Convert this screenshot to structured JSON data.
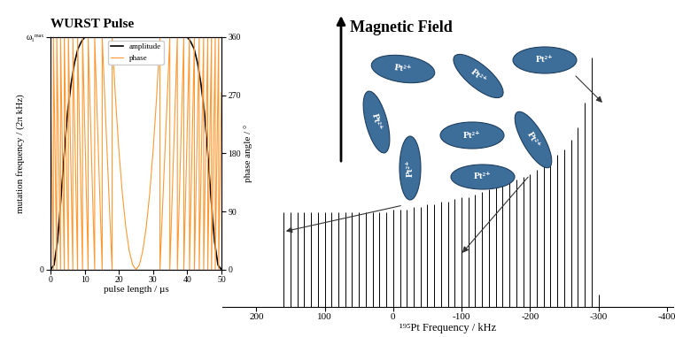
{
  "chart_data": [
    {
      "type": "line",
      "title": "WURST Pulse",
      "xlabel": "pulse length / µs",
      "ylabel": "mutation frequency / (2π kHz)",
      "y2label": "phase angle / °",
      "xlim": [
        0,
        50
      ],
      "xticks": [
        0,
        10,
        20,
        30,
        40,
        50
      ],
      "ylim": [
        0,
        1
      ],
      "yticks": [
        0,
        {
          "value": 1,
          "label": "ω₁ᵐᵃˣ"
        }
      ],
      "y2lim": [
        0,
        360
      ],
      "y2ticks": [
        0,
        90,
        180,
        270,
        360
      ],
      "legend": "upper center",
      "series": [
        {
          "name": "amplitude",
          "color": "#000000",
          "x": [
            0,
            1,
            2,
            3,
            4,
            5,
            6,
            7,
            8,
            9,
            10,
            40,
            41,
            42,
            43,
            44,
            45,
            46,
            47,
            48,
            49,
            50
          ],
          "values": [
            0,
            0.02,
            0.12,
            0.3,
            0.5,
            0.68,
            0.8,
            0.89,
            0.95,
            0.98,
            1,
            1,
            0.98,
            0.95,
            0.89,
            0.8,
            0.68,
            0.5,
            0.3,
            0.12,
            0.02,
            0
          ]
        },
        {
          "name": "phase",
          "color": "#ff9933",
          "axis": "y2",
          "x": [
            0,
            0.8,
            0.8,
            1.8,
            1.8,
            2.9,
            2.9,
            4,
            4,
            5.2,
            5.2,
            6.5,
            6.5,
            7.9,
            7.9,
            9.35,
            9.35,
            11,
            11,
            12.9,
            12.9,
            15.1,
            15.1,
            18,
            18,
            19,
            20,
            21,
            22,
            23,
            24,
            25,
            26,
            27,
            28,
            29,
            30,
            31,
            32,
            32,
            34.9,
            34.9,
            37.1,
            37.1,
            39,
            39,
            40.65,
            40.65,
            42.1,
            42.1,
            43.5,
            43.5,
            44.8,
            44.8,
            46,
            46,
            47.1,
            47.1,
            48.2,
            48.2,
            49.2,
            49.2,
            50
          ],
          "values": [
            274,
            0,
            360,
            0,
            360,
            0,
            360,
            0,
            360,
            0,
            360,
            0,
            360,
            0,
            360,
            0,
            360,
            0,
            360,
            0,
            360,
            0,
            360,
            0,
            360,
            264.6,
            183.8,
            117.6,
            66.2,
            29.4,
            7.4,
            0,
            7.4,
            29.4,
            66.2,
            117.6,
            183.8,
            264.6,
            360,
            0,
            360,
            0,
            360,
            0,
            360,
            0,
            360,
            0,
            360,
            0,
            360,
            0,
            360,
            0,
            360,
            0,
            360,
            0,
            360,
            0,
            360,
            0,
            274
          ]
        }
      ]
    },
    {
      "type": "stem",
      "xlabel": "¹⁹⁵Pt Frequency / kHz",
      "xlim": [
        250,
        -410
      ],
      "xticks": [
        200,
        100,
        0,
        -100,
        -200,
        -300,
        -400
      ],
      "ylim": [
        0,
        1
      ],
      "tick_labels": "x",
      "color": "#000000",
      "x": [
        160,
        150,
        140,
        130,
        120,
        110,
        100,
        90,
        80,
        70,
        60,
        50,
        40,
        30,
        20,
        10,
        0,
        -10,
        -20,
        -30,
        -40,
        -50,
        -60,
        -70,
        -80,
        -90,
        -100,
        -110,
        -120,
        -130,
        -140,
        -150,
        -160,
        -170,
        -180,
        -190,
        -200,
        -210,
        -220,
        -230,
        -240,
        -250,
        -260,
        -270,
        -280,
        -290,
        -300
      ],
      "values": [
        0.38,
        0.38,
        0.38,
        0.38,
        0.38,
        0.38,
        0.38,
        0.38,
        0.38,
        0.38,
        0.38,
        0.38,
        0.38,
        0.38,
        0.38,
        0.38,
        0.39,
        0.39,
        0.39,
        0.4,
        0.4,
        0.41,
        0.41,
        0.42,
        0.42,
        0.43,
        0.44,
        0.44,
        0.45,
        0.46,
        0.47,
        0.48,
        0.49,
        0.5,
        0.51,
        0.52,
        0.53,
        0.55,
        0.57,
        0.59,
        0.61,
        0.63,
        0.67,
        0.72,
        0.82,
        1.0,
        0.05
      ]
    }
  ],
  "diagram": {
    "title": "Magnetic Field",
    "labels": [
      "Pt²⁺",
      "Pt²⁺",
      "Pt²⁺",
      "Pt²⁺",
      "Pt²⁺",
      "Pt²⁺",
      "Pt²⁺",
      "Pt²⁺"
    ]
  }
}
